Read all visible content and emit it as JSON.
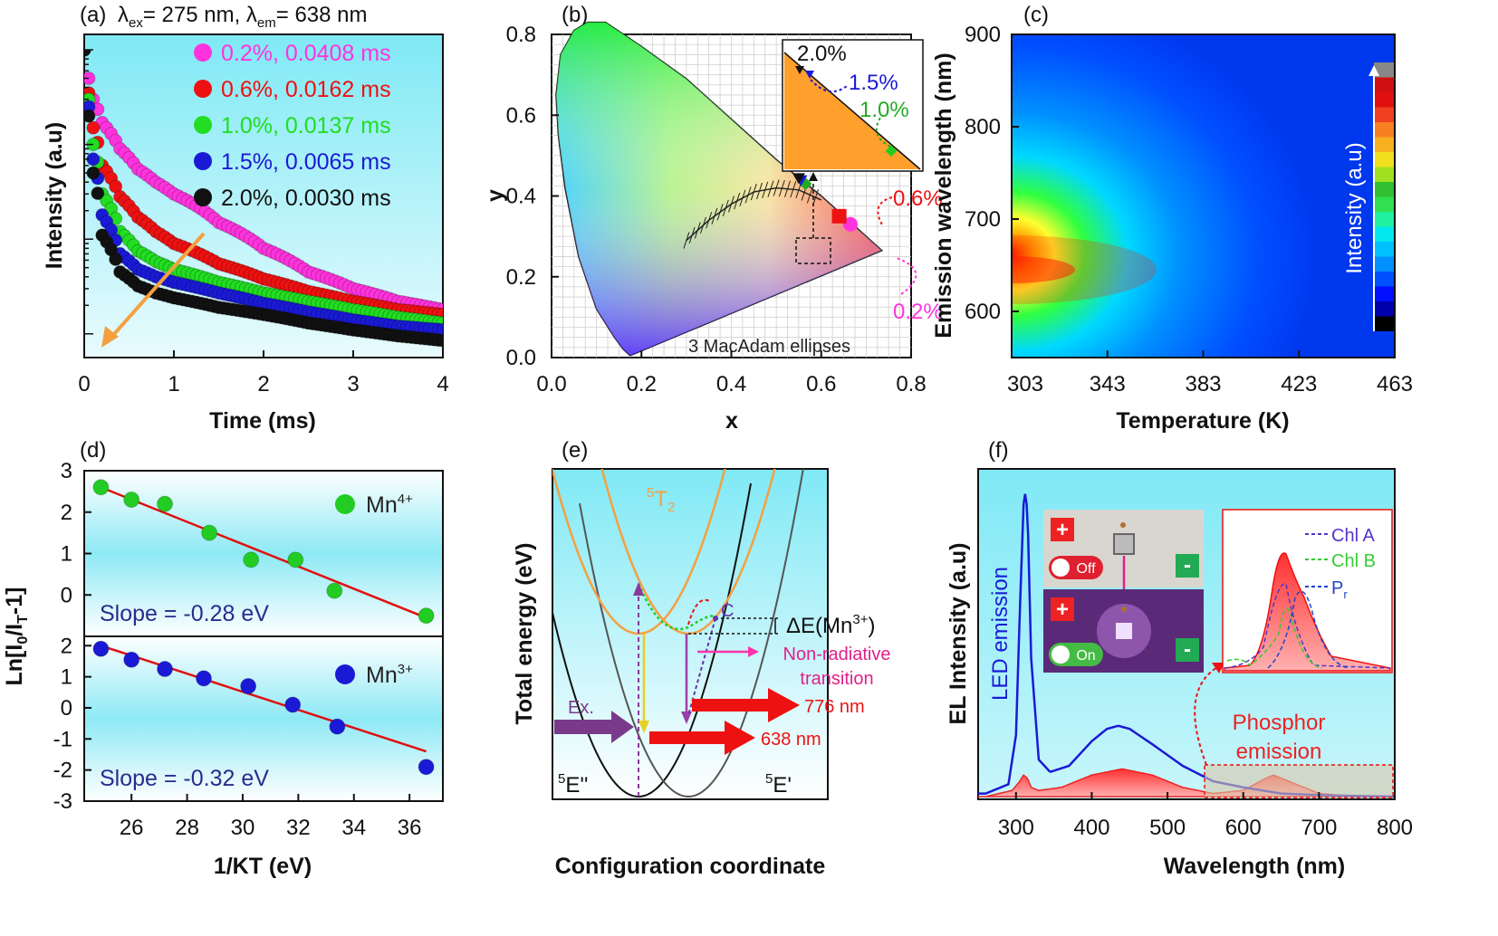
{
  "panels": {
    "a": {
      "label": "(a)",
      "title_prefix": "λ",
      "title_ex_sub": "ex",
      "title_mid": "= 275 nm, λ",
      "title_em_sub": "em",
      "title_end": "= 638 nm"
    },
    "b": {
      "label": "(b)"
    },
    "c": {
      "label": "(c)"
    },
    "d": {
      "label": "(d)"
    },
    "e": {
      "label": "(e)"
    },
    "f": {
      "label": "(f)"
    }
  },
  "colors": {
    "bg_cyan": "#7fe9f5",
    "magenta": "#ff33dd",
    "red": "#ee1111",
    "green": "#22dd22",
    "blue": "#1a1ad6",
    "black": "#111111",
    "orange": "#f5a040",
    "fit_red": "#e01010"
  },
  "chart_data": [
    {
      "id": "a",
      "type": "scatter",
      "log_y": true,
      "xlabel": "Time (ms)",
      "ylabel": "Intensity (a.u)",
      "xlim": [
        0,
        4
      ],
      "x_ticks": [
        "0",
        "1",
        "2",
        "3",
        "4"
      ],
      "series": [
        {
          "name": "0.2%, 0.0408 ms",
          "color": "#ff33dd",
          "tau": 0.0408,
          "x": [
            0,
            0.05,
            0.1,
            0.2,
            0.4,
            0.6,
            0.8,
            1.0,
            1.5,
            2.0,
            2.5,
            3.0,
            3.5,
            4.0
          ],
          "y": [
            1.0,
            0.5,
            0.3,
            0.17,
            0.09,
            0.055,
            0.04,
            0.03,
            0.015,
            0.008,
            0.0045,
            0.003,
            0.0022,
            0.0018
          ]
        },
        {
          "name": "0.6%, 0.0162 ms",
          "color": "#ee1111",
          "tau": 0.0162,
          "x": [
            0,
            0.05,
            0.1,
            0.2,
            0.4,
            0.6,
            0.8,
            1.0,
            1.5,
            2.0,
            2.5,
            3.0,
            3.5,
            4.0
          ],
          "y": [
            1.0,
            0.35,
            0.15,
            0.06,
            0.028,
            0.017,
            0.012,
            0.009,
            0.0055,
            0.0038,
            0.0028,
            0.0022,
            0.0018,
            0.0016
          ]
        },
        {
          "name": "1.0%, 0.0137 ms",
          "color": "#22dd22",
          "tau": 0.0137,
          "x": [
            0,
            0.05,
            0.1,
            0.2,
            0.4,
            0.6,
            0.8,
            1.0,
            1.5,
            2.0,
            2.5,
            3.0,
            3.5,
            4.0
          ],
          "y": [
            1.0,
            0.3,
            0.1,
            0.03,
            0.012,
            0.0075,
            0.0058,
            0.0048,
            0.0035,
            0.0027,
            0.0022,
            0.0018,
            0.0015,
            0.0013
          ]
        },
        {
          "name": "1.5%, 0.0065 ms",
          "color": "#1a1ad6",
          "tau": 0.0065,
          "x": [
            0,
            0.05,
            0.1,
            0.2,
            0.4,
            0.6,
            0.8,
            1.0,
            1.5,
            2.0,
            2.5,
            3.0,
            3.5,
            4.0
          ],
          "y": [
            1.0,
            0.25,
            0.07,
            0.018,
            0.007,
            0.0048,
            0.004,
            0.0035,
            0.0027,
            0.0021,
            0.0017,
            0.0014,
            0.0012,
            0.0011
          ]
        },
        {
          "name": "2.0%, 0.0030 ms",
          "color": "#111111",
          "tau": 0.003,
          "x": [
            0,
            0.05,
            0.1,
            0.2,
            0.4,
            0.6,
            0.8,
            1.0,
            1.5,
            2.0,
            2.5,
            3.0,
            3.5,
            4.0
          ],
          "y": [
            1.0,
            0.2,
            0.05,
            0.011,
            0.0045,
            0.0032,
            0.0027,
            0.0024,
            0.0019,
            0.0016,
            0.0013,
            0.0011,
            0.00095,
            0.00085
          ]
        }
      ]
    },
    {
      "id": "b",
      "type": "scatter",
      "xlabel": "x",
      "ylabel": "y",
      "xlim": [
        0,
        0.8
      ],
      "ylim": [
        0,
        0.8
      ],
      "x_ticks": [
        "0.0",
        "0.2",
        "0.4",
        "0.6",
        "0.8"
      ],
      "y_ticks": [
        "0.0",
        "0.2",
        "0.4",
        "0.6",
        "0.8"
      ],
      "footer_label": "3  MacAdam ellipses",
      "points": [
        {
          "name": "0.2%",
          "x": 0.665,
          "y": 0.33,
          "color": "#ff33dd"
        },
        {
          "name": "0.6%",
          "x": 0.64,
          "y": 0.35,
          "color": "#ee1111"
        },
        {
          "name": "1.0%",
          "x": 0.565,
          "y": 0.43,
          "color": "#22aa22"
        },
        {
          "name": "1.5%",
          "x": 0.555,
          "y": 0.44,
          "color": "#1a1ad6"
        },
        {
          "name": "2.0%",
          "x": 0.55,
          "y": 0.445,
          "color": "#111111"
        }
      ],
      "inset_labels": [
        "2.0%",
        "1.5%",
        "1.0%"
      ],
      "outer_labels": [
        "0.6%",
        "0.2%"
      ]
    },
    {
      "id": "c",
      "type": "heatmap",
      "xlabel": "Temperature (K)",
      "ylabel": "Emission wavelength (nm)",
      "xlim": [
        303,
        463
      ],
      "ylim": [
        550,
        900
      ],
      "x_ticks": [
        "303",
        "343",
        "383",
        "423",
        "463"
      ],
      "y_ticks": [
        "600",
        "700",
        "800",
        "900"
      ],
      "colorbar_label": "Intensity (a.u)",
      "peak": {
        "temperature": 303,
        "wavelength": 640
      }
    },
    {
      "id": "d",
      "type": "scatter",
      "xlabel": "1/KT (eV)",
      "ylabel_parts": [
        "Ln[I",
        "0",
        "/I",
        "T",
        "-1]"
      ],
      "x_ticks": [
        "26",
        "28",
        "30",
        "32",
        "34",
        "36"
      ],
      "top_y_ticks": [
        "0",
        "1",
        "2",
        "3"
      ],
      "bottom_y_ticks": [
        "-3",
        "-2",
        "-1",
        "0",
        "1",
        "2"
      ],
      "series": [
        {
          "name": "Mn",
          "sup": "4+",
          "color": "#22cc22",
          "slope_label": "Slope = -0.28 eV",
          "x": [
            24.9,
            26.0,
            27.2,
            28.8,
            30.3,
            31.9,
            33.3,
            36.6
          ],
          "y": [
            2.6,
            2.3,
            2.2,
            1.5,
            0.85,
            0.85,
            0.1,
            -0.5
          ],
          "fit": [
            [
              24.9,
              2.6
            ],
            [
              36.6,
              -0.55
            ]
          ]
        },
        {
          "name": "Mn",
          "sup": "3+",
          "color": "#1a1ad6",
          "slope_label": "Slope = -0.32 eV",
          "x": [
            24.9,
            26.0,
            27.2,
            28.6,
            30.2,
            31.8,
            33.4,
            36.6
          ],
          "y": [
            1.9,
            1.55,
            1.25,
            0.95,
            0.7,
            0.1,
            -0.6,
            -1.9
          ],
          "fit": [
            [
              24.9,
              2.0
            ],
            [
              36.6,
              -1.4
            ]
          ]
        }
      ]
    },
    {
      "id": "e",
      "type": "diagram",
      "xlabel": "Configuration coordinate",
      "ylabel": "Total energy (eV)",
      "labels": {
        "t2": "T",
        "t2_sup": "5",
        "t2_sub": "2",
        "e2": "E''",
        "e1": "E'",
        "e_sup": "5",
        "ex": "Ex.",
        "c": "C",
        "delta": "ΔE(Mn",
        "delta_sup": "3+",
        "delta_end": ")",
        "nonrad": [
          "Non-radiative",
          "transition"
        ],
        "l776": "776 nm",
        "l638": "638 nm"
      }
    },
    {
      "id": "f",
      "type": "line",
      "xlabel": "Wavelength (nm)",
      "ylabel": "EL Intensity (a.u)",
      "xlim": [
        250,
        800
      ],
      "x_ticks": [
        "300",
        "400",
        "500",
        "600",
        "700",
        "800"
      ],
      "led_label": "LED emission",
      "phosphor_label": [
        "Phosphor",
        "emission"
      ],
      "inset_legend": [
        {
          "name": "Chl A",
          "color": "#5533cc"
        },
        {
          "name": "Chl B",
          "color": "#33cc33"
        },
        {
          "name": "P",
          "sub": "r",
          "color": "#2244cc"
        }
      ],
      "led_buttons": {
        "plus": "+",
        "minus": "-",
        "off": "Off",
        "on": "On"
      },
      "series": [
        {
          "name": "LED",
          "color": "#1a1ad6",
          "x": [
            260,
            290,
            300,
            305,
            310,
            313,
            316,
            320,
            330,
            345,
            370,
            400,
            420,
            435,
            450,
            480,
            520,
            560,
            600,
            650,
            700,
            750,
            800
          ],
          "y": [
            0.01,
            0.04,
            0.2,
            0.6,
            0.95,
            1.0,
            0.85,
            0.45,
            0.12,
            0.08,
            0.1,
            0.18,
            0.22,
            0.23,
            0.22,
            0.17,
            0.1,
            0.05,
            0.03,
            0.01,
            0.005,
            0.002,
            0.0
          ]
        },
        {
          "name": "Phosphor",
          "color": "#ee2222",
          "x": [
            260,
            295,
            305,
            310,
            315,
            320,
            330,
            360,
            400,
            440,
            480,
            520,
            560,
            600,
            630,
            640,
            660,
            700,
            750,
            800
          ],
          "y": [
            0.0,
            0.02,
            0.05,
            0.07,
            0.06,
            0.03,
            0.02,
            0.03,
            0.07,
            0.09,
            0.07,
            0.03,
            0.01,
            0.02,
            0.06,
            0.07,
            0.05,
            0.01,
            0.0,
            0.0
          ]
        }
      ]
    }
  ]
}
